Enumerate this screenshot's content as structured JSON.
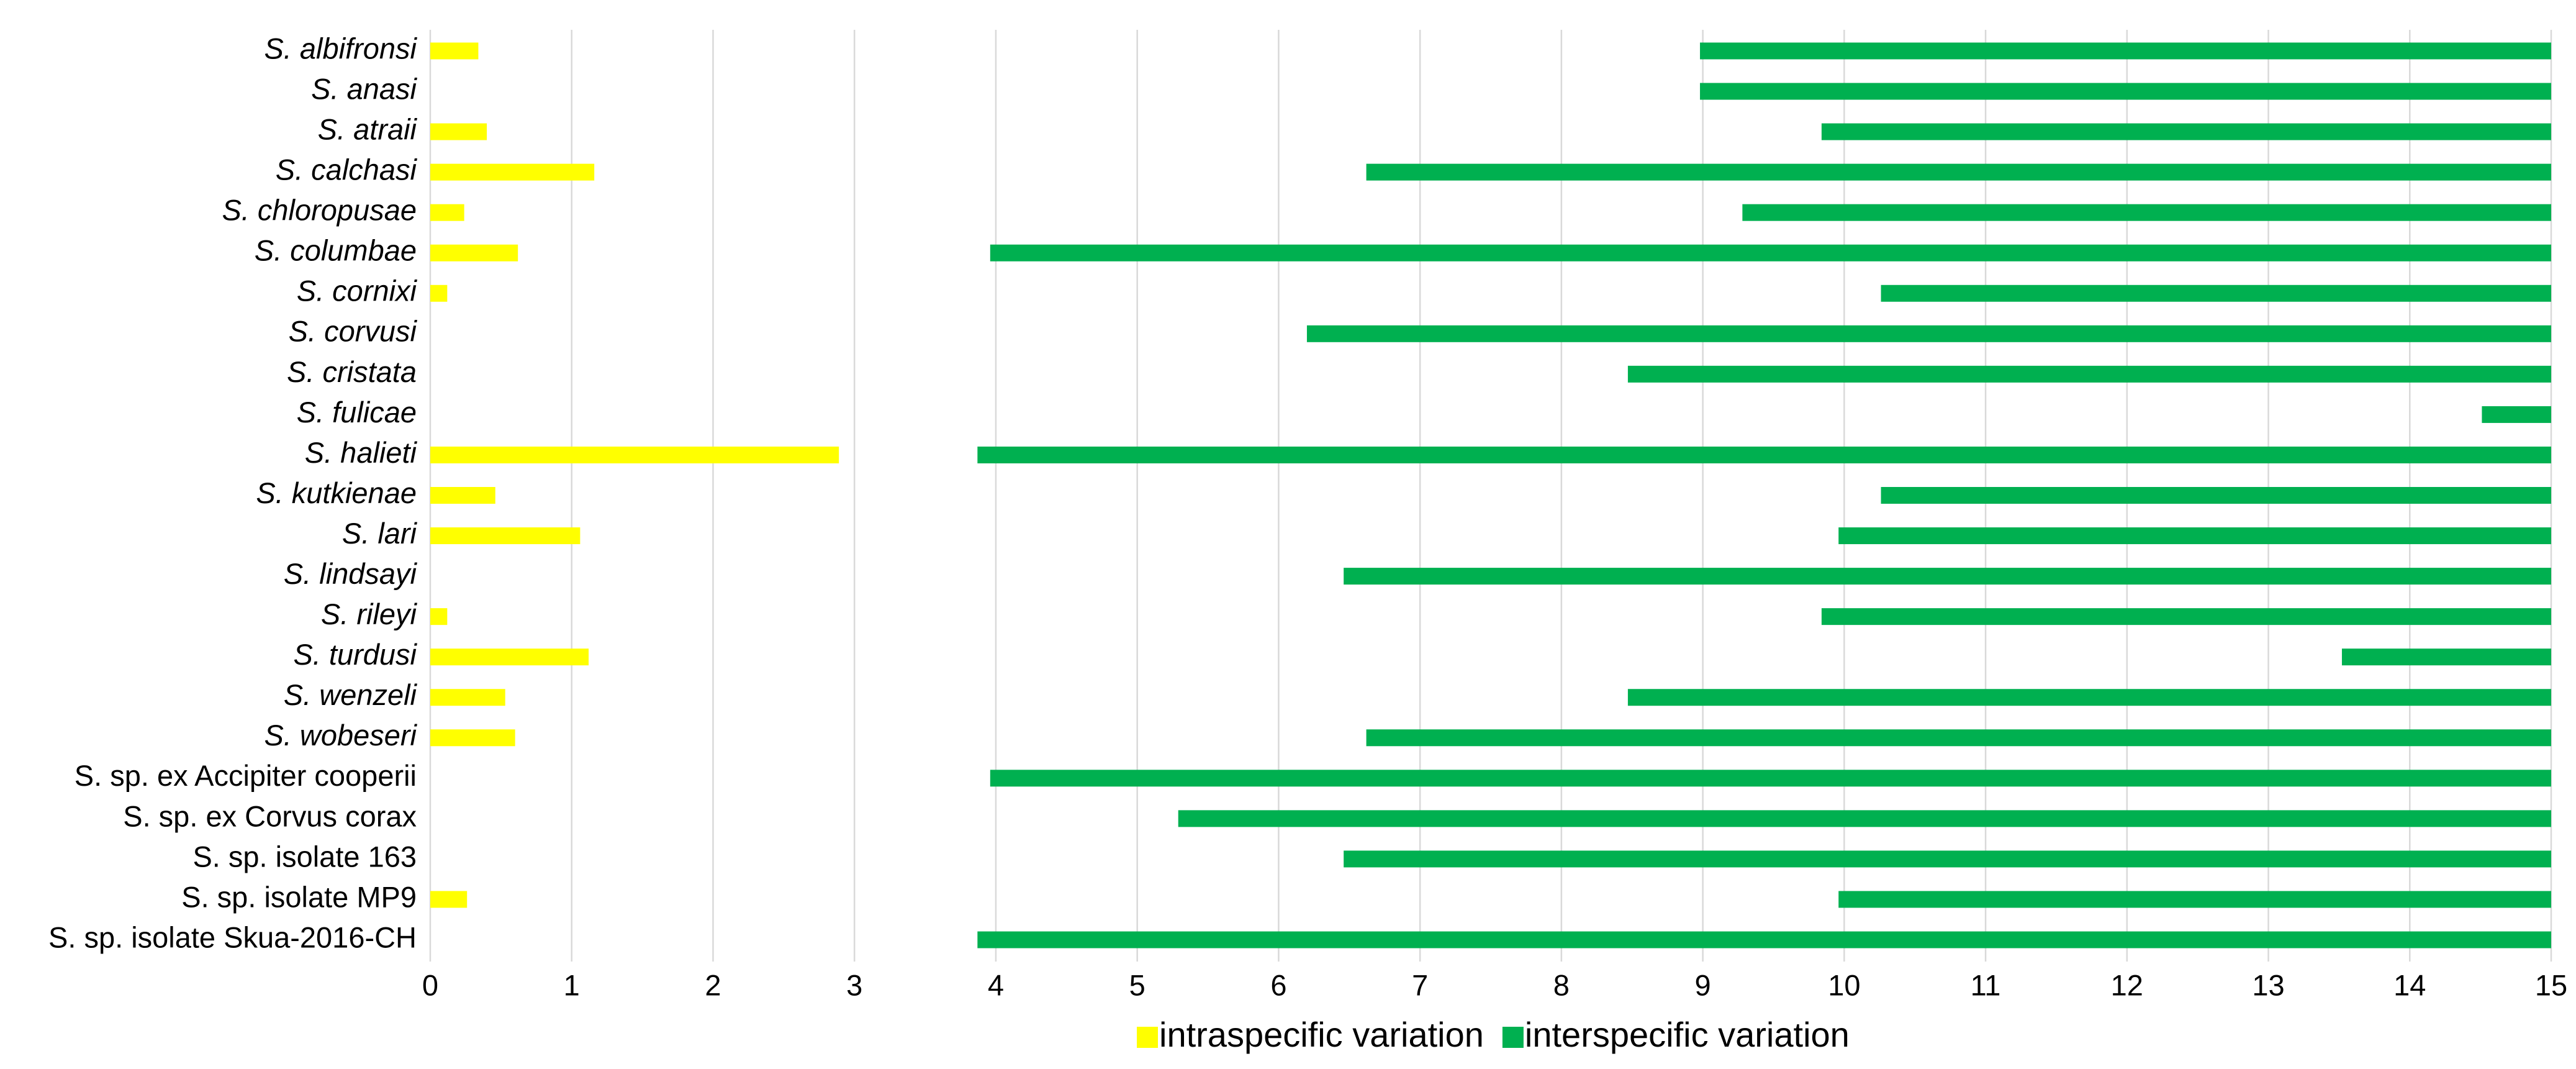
{
  "chart_data": {
    "type": "bar",
    "orientation": "horizontal",
    "categories": [
      "S. albifronsi",
      "S. anasi",
      "S. atraii",
      "S. calchasi",
      "S. chloropusae",
      "S. columbae",
      "S. cornixi",
      "S. corvusi",
      "S. cristata",
      "S. fulicae",
      "S. halieti",
      "S. kutkienae",
      "S. lari",
      "S. lindsayi",
      "S. rileyi",
      "S. turdusi",
      "S. wenzeli",
      "S. wobeseri",
      "S. sp. ex Accipiter cooperii",
      "S. sp. ex Corvus corax",
      "S. sp. isolate 163",
      "S. sp. isolate MP9",
      "S. sp. isolate Skua-2016-CH"
    ],
    "series": [
      {
        "name": "intraspecific variation",
        "color": "#ffff00",
        "values": [
          0.34,
          null,
          0.4,
          1.16,
          0.24,
          0.62,
          0.12,
          null,
          null,
          null,
          2.89,
          0.46,
          1.06,
          null,
          0.12,
          1.12,
          0.53,
          0.6,
          null,
          null,
          null,
          0.26,
          null
        ]
      },
      {
        "name": "interspecific variation",
        "color": "#00b050",
        "values": [
          8.98,
          8.98,
          9.84,
          6.62,
          9.28,
          3.96,
          10.26,
          6.2,
          8.47,
          14.51,
          3.87,
          10.26,
          9.96,
          6.46,
          9.84,
          13.52,
          8.47,
          6.62,
          3.96,
          5.29,
          6.46,
          9.96,
          3.87
        ],
        "high": [
          15,
          15,
          15,
          15,
          15,
          15,
          15,
          15,
          15,
          15,
          15,
          15,
          15,
          15,
          15,
          15,
          15,
          15,
          15,
          15,
          15,
          15,
          15
        ]
      }
    ],
    "xlim": [
      0,
      15
    ],
    "xticks": [
      0,
      1,
      2,
      3,
      4,
      5,
      6,
      7,
      8,
      9,
      10,
      11,
      12,
      13,
      14,
      15
    ],
    "grid": true,
    "legend": "bottom"
  }
}
